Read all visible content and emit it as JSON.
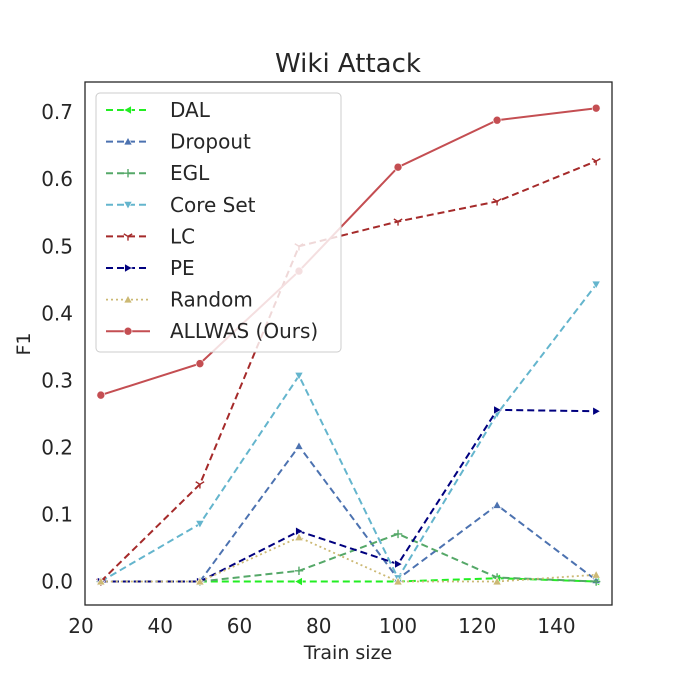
{
  "chart_data": {
    "type": "line",
    "title": "Wiki Attack",
    "xlabel": "Train size",
    "ylabel": "F1",
    "xlim": [
      21,
      154
    ],
    "ylim": [
      -0.035,
      0.745
    ],
    "xticks": [
      20,
      40,
      60,
      80,
      100,
      120,
      140
    ],
    "yticks": [
      0.0,
      0.1,
      0.2,
      0.3,
      0.4,
      0.5,
      0.6,
      0.7
    ],
    "ytick_labels": [
      "0.0",
      "0.1",
      "0.2",
      "0.3",
      "0.4",
      "0.5",
      "0.6",
      "0.7"
    ],
    "grid": false,
    "legend_position": "upper-left",
    "x": [
      25,
      50,
      75,
      100,
      125,
      150
    ],
    "series": [
      {
        "name": "DAL",
        "values": [
          0.0,
          0.0,
          0.0,
          0.0,
          0.005,
          0.0
        ],
        "color": "#22ee22",
        "dash": "7,4",
        "marker": "triangle-left"
      },
      {
        "name": "Dropout",
        "values": [
          0.0,
          0.0,
          0.202,
          0.004,
          0.114,
          0.002
        ],
        "color": "#4c72b0",
        "dash": "7,4",
        "marker": "triangle-up"
      },
      {
        "name": "EGL",
        "values": [
          0.0,
          0.0,
          0.016,
          0.071,
          0.006,
          0.0
        ],
        "color": "#55a868",
        "dash": "7,4",
        "marker": "plus"
      },
      {
        "name": "Core Set",
        "values": [
          0.0,
          0.086,
          0.307,
          0.005,
          0.25,
          0.443
        ],
        "color": "#64b5cd",
        "dash": "7,4",
        "marker": "triangle-down"
      },
      {
        "name": "LC",
        "values": [
          0.0,
          0.145,
          0.5,
          0.537,
          0.567,
          0.627
        ],
        "color": "#a52a2a",
        "dash": "7,4",
        "marker": "tri"
      },
      {
        "name": "PE",
        "values": [
          0.0,
          0.0,
          0.075,
          0.026,
          0.256,
          0.254
        ],
        "color": "#00007f",
        "dash": "7,4",
        "marker": "triangle-right"
      },
      {
        "name": "Random",
        "values": [
          0.0,
          0.0,
          0.066,
          0.0,
          0.0,
          0.01
        ],
        "color": "#ccb974",
        "dash": "2,3",
        "marker": "triangle-up"
      },
      {
        "name": "ALLWAS (Ours)",
        "values": [
          0.278,
          0.325,
          0.463,
          0.618,
          0.688,
          0.706
        ],
        "color": "#c44e52",
        "dash": "",
        "marker": "circle"
      }
    ]
  }
}
